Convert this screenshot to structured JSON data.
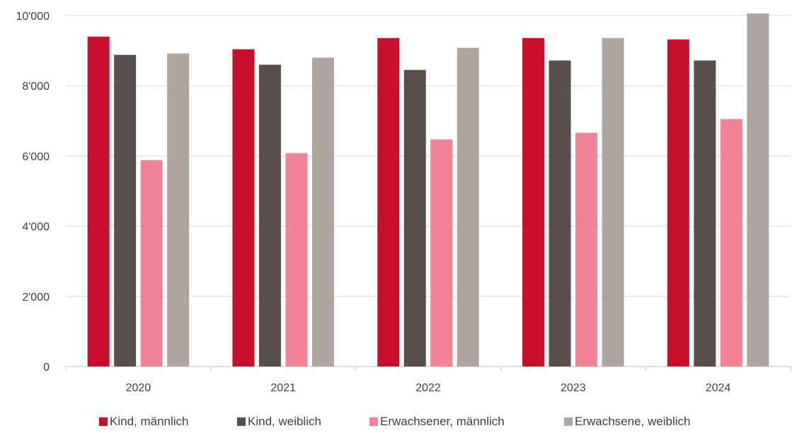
{
  "chart_data": {
    "type": "bar",
    "categories": [
      "2020",
      "2021",
      "2022",
      "2023",
      "2024"
    ],
    "series": [
      {
        "name": "Kind, männlich",
        "color": "#c8102e",
        "values": [
          9400,
          9040,
          9360,
          9360,
          9320
        ]
      },
      {
        "name": "Kind, weiblich",
        "color": "#5b4f4b",
        "values": [
          8880,
          8600,
          8450,
          8720,
          8720
        ]
      },
      {
        "name": "Erwachsener, männlich",
        "color": "#f28295",
        "values": [
          5880,
          6080,
          6470,
          6660,
          7050
        ]
      },
      {
        "name": "Erwachsene, weiblich",
        "color": "#b1a59f",
        "values": [
          8920,
          8800,
          9080,
          9360,
          10060
        ]
      }
    ],
    "y_ticks": [
      "0",
      "2'000",
      "4'000",
      "6'000",
      "8'000",
      "10'000"
    ],
    "ylim": [
      0,
      10000
    ],
    "grid": true,
    "legend_position": "bottom",
    "title": "",
    "xlabel": "",
    "ylabel": ""
  }
}
